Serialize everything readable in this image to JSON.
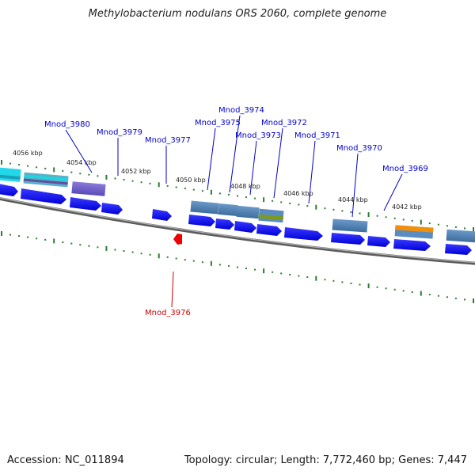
{
  "title": "Methylobacterium nodulans ORS 2060, complete genome",
  "footer": {
    "accession": "Accession: NC_011894",
    "topology": "Topology: circular; Length: 7,772,460 bp; Genes: 7,447"
  },
  "scale_labels": [
    "4056 kbp",
    "4054 kbp",
    "4052 kbp",
    "4050 kbp",
    "4048 kbp",
    "4046 kbp",
    "4044 kbp",
    "4042 kbp"
  ],
  "gene_labels": [
    {
      "name": "Mnod_3980",
      "strand": "top"
    },
    {
      "name": "Mnod_3979",
      "strand": "top"
    },
    {
      "name": "Mnod_3977",
      "strand": "top"
    },
    {
      "name": "Mnod_3975",
      "strand": "top"
    },
    {
      "name": "Mnod_3974",
      "strand": "top"
    },
    {
      "name": "Mnod_3973",
      "strand": "top"
    },
    {
      "name": "Mnod_3972",
      "strand": "top"
    },
    {
      "name": "Mnod_3971",
      "strand": "top"
    },
    {
      "name": "Mnod_3970",
      "strand": "top"
    },
    {
      "name": "Mnod_3969",
      "strand": "top"
    },
    {
      "name": "Mnod_3976",
      "strand": "bottom"
    }
  ],
  "colors": {
    "gene_blue": "#0000ee",
    "label_blue": "#0000cc",
    "label_red": "#cc0000",
    "tick_green": "#2e7d32",
    "backbone": "#808080"
  }
}
